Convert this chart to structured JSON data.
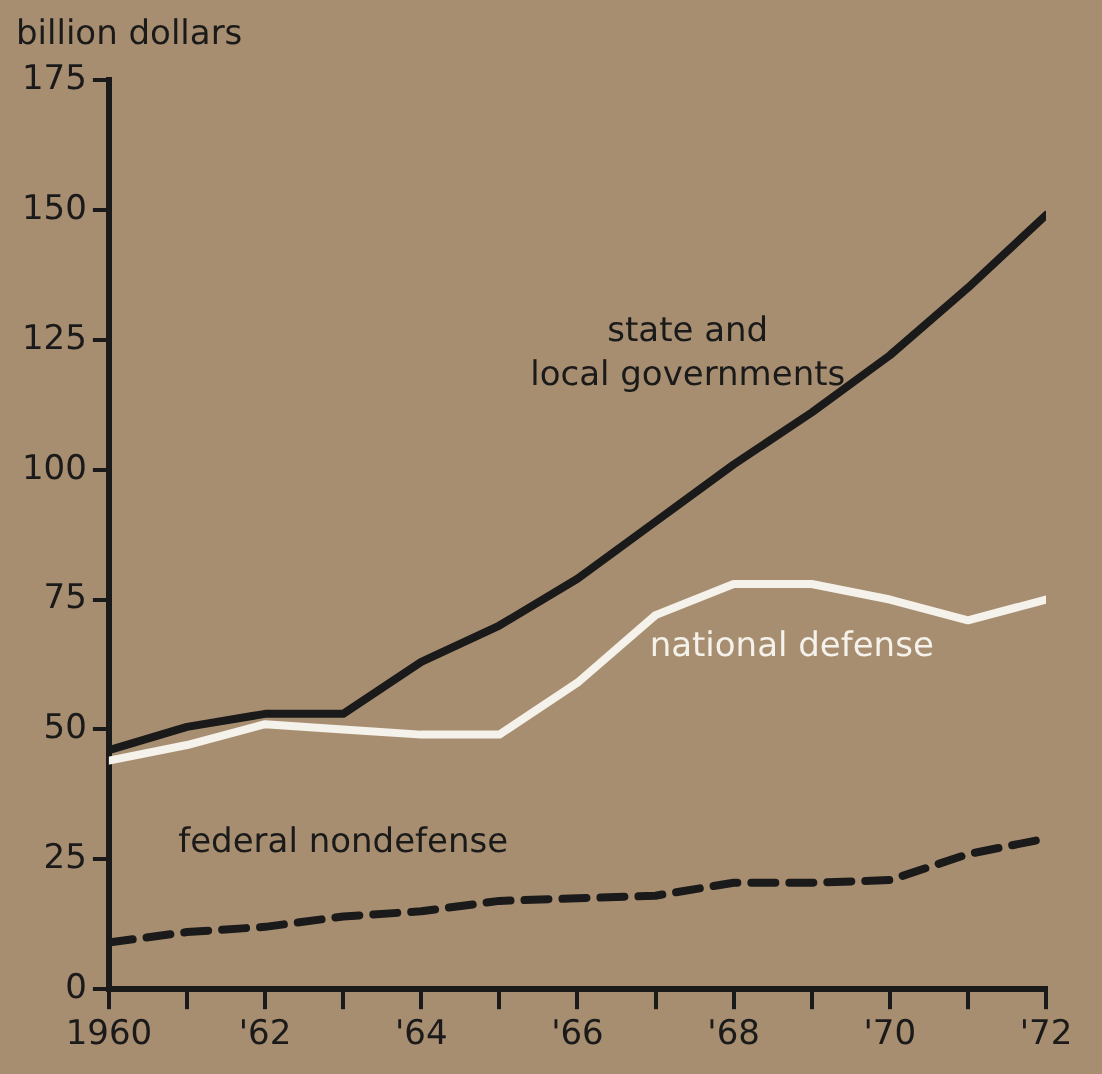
{
  "chart_data": {
    "type": "line",
    "ylabel": "billion dollars",
    "x": [
      1960,
      1961,
      1962,
      1963,
      1964,
      1965,
      1966,
      1967,
      1968,
      1969,
      1970,
      1971,
      1972
    ],
    "series": [
      {
        "name": "state and local governments",
        "color": "#1a1a1a",
        "values": [
          46,
          50.5,
          53,
          53,
          63,
          70,
          79,
          90,
          101,
          111,
          122,
          135,
          149
        ]
      },
      {
        "name": "national defense",
        "color": "#f4f2ea",
        "values": [
          44,
          47,
          51,
          50,
          49,
          49,
          59,
          72,
          78,
          78,
          75,
          71,
          75
        ]
      },
      {
        "name": "federal nondefense",
        "color": "#1a1a1a",
        "line_style": "dashed",
        "values": [
          9,
          11,
          12,
          14,
          15,
          17,
          17.5,
          18,
          20.5,
          20.5,
          21,
          26,
          29
        ]
      }
    ],
    "xlim": [
      1960,
      1972
    ],
    "xticks": [
      {
        "value": 1960,
        "label": "1960"
      },
      {
        "value": 1961,
        "label": null
      },
      {
        "value": 1962,
        "label": "'62"
      },
      {
        "value": 1963,
        "label": null
      },
      {
        "value": 1964,
        "label": "'64"
      },
      {
        "value": 1965,
        "label": null
      },
      {
        "value": 1966,
        "label": "'66"
      },
      {
        "value": 1967,
        "label": null
      },
      {
        "value": 1968,
        "label": "'68"
      },
      {
        "value": 1969,
        "label": null
      },
      {
        "value": 1970,
        "label": "'70"
      },
      {
        "value": 1971,
        "label": null
      },
      {
        "value": 1972,
        "label": "'72"
      }
    ],
    "ylim": [
      0,
      175
    ],
    "yticks": [
      0,
      25,
      50,
      75,
      100,
      125,
      150,
      175
    ],
    "grid": false,
    "legend": false,
    "marker": "none"
  }
}
